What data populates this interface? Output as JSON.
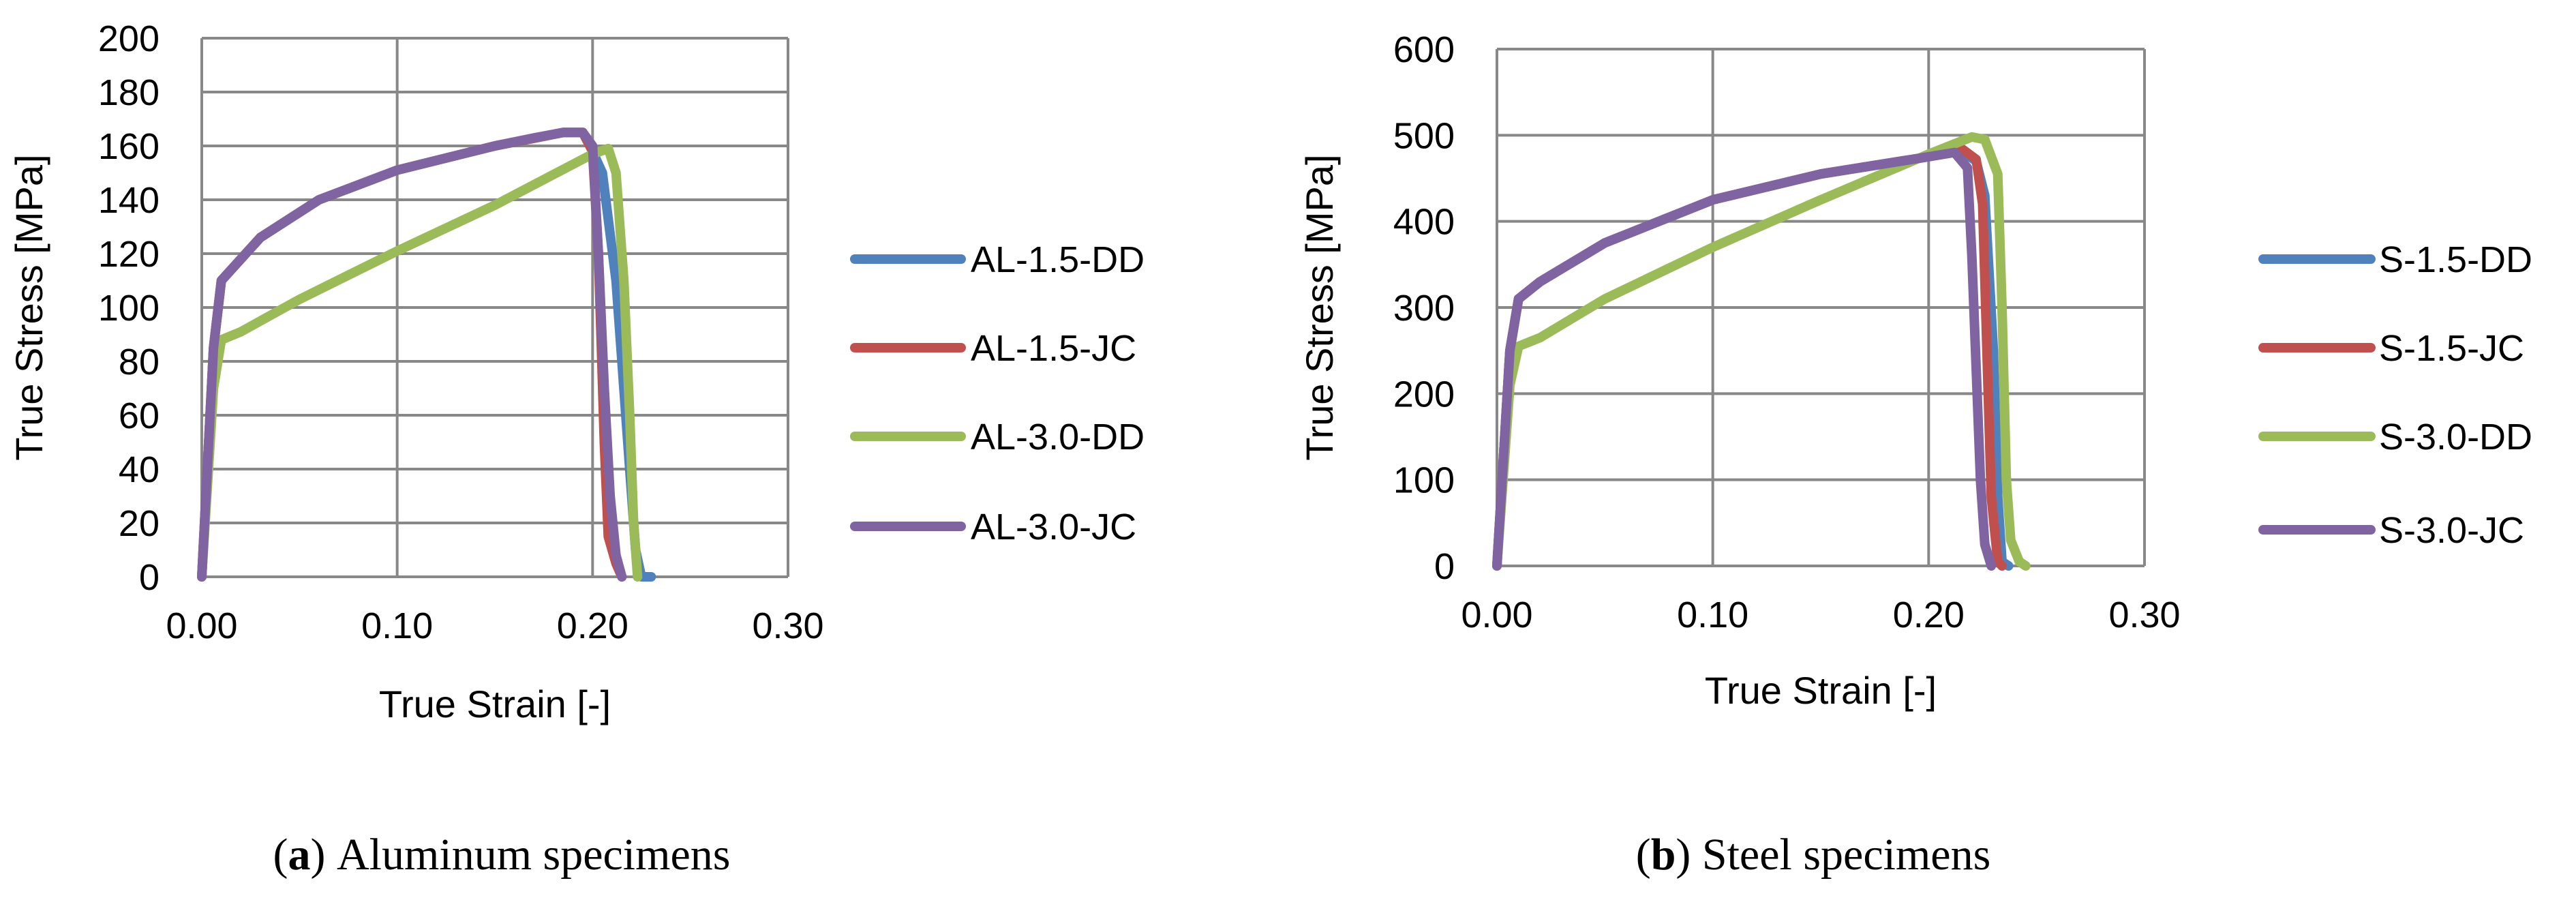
{
  "chart_data": [
    {
      "type": "line",
      "caption": {
        "open": "(",
        "letter": "a",
        "close": ") ",
        "text": "Aluminum specimens"
      },
      "xlabel": "True Strain [-]",
      "ylabel": "True Stress [MPa]",
      "xlim": [
        0,
        0.3
      ],
      "ylim": [
        0,
        200
      ],
      "x_ticks": [
        "0.00",
        "0.10",
        "0.20",
        "0.30"
      ],
      "y_ticks": [
        "0",
        "20",
        "40",
        "60",
        "80",
        "100",
        "120",
        "140",
        "160",
        "180",
        "200"
      ],
      "grid": true,
      "legend_position": "right",
      "series": [
        {
          "name": "AL-1.5-DD",
          "color": "#4F81BD",
          "points": [
            [
              0,
              0
            ],
            [
              0.006,
              85
            ],
            [
              0.01,
              110
            ],
            [
              0.03,
              126
            ],
            [
              0.06,
              140
            ],
            [
              0.1,
              151
            ],
            [
              0.15,
              160
            ],
            [
              0.185,
              165
            ],
            [
              0.195,
              165
            ],
            [
              0.2,
              158
            ],
            [
              0.205,
              150
            ],
            [
              0.212,
              110
            ],
            [
              0.218,
              50
            ],
            [
              0.222,
              10
            ],
            [
              0.225,
              0
            ],
            [
              0.23,
              0
            ]
          ]
        },
        {
          "name": "AL-1.5-JC",
          "color": "#C0504D",
          "points": [
            [
              0,
              0
            ],
            [
              0.006,
              85
            ],
            [
              0.01,
              110
            ],
            [
              0.03,
              126
            ],
            [
              0.06,
              140
            ],
            [
              0.1,
              151
            ],
            [
              0.15,
              160
            ],
            [
              0.185,
              165
            ],
            [
              0.195,
              165
            ],
            [
              0.2,
              158
            ],
            [
              0.203,
              120
            ],
            [
              0.206,
              50
            ],
            [
              0.208,
              15
            ],
            [
              0.212,
              5
            ],
            [
              0.215,
              0
            ]
          ]
        },
        {
          "name": "AL-3.0-DD",
          "color": "#9BBB59",
          "points": [
            [
              0,
              0
            ],
            [
              0.006,
              70
            ],
            [
              0.01,
              88
            ],
            [
              0.02,
              91
            ],
            [
              0.05,
              103
            ],
            [
              0.1,
              121
            ],
            [
              0.15,
              138
            ],
            [
              0.2,
              157
            ],
            [
              0.208,
              159
            ],
            [
              0.212,
              150
            ],
            [
              0.216,
              110
            ],
            [
              0.219,
              60
            ],
            [
              0.221,
              20
            ],
            [
              0.223,
              0
            ]
          ]
        },
        {
          "name": "AL-3.0-JC",
          "color": "#8064A2",
          "points": [
            [
              0,
              0
            ],
            [
              0.006,
              85
            ],
            [
              0.01,
              110
            ],
            [
              0.03,
              126
            ],
            [
              0.06,
              140
            ],
            [
              0.1,
              151
            ],
            [
              0.15,
              160
            ],
            [
              0.17,
              163
            ],
            [
              0.185,
              165
            ],
            [
              0.195,
              165
            ],
            [
              0.2,
              160
            ],
            [
              0.203,
              120
            ],
            [
              0.206,
              70
            ],
            [
              0.209,
              30
            ],
            [
              0.212,
              8
            ],
            [
              0.215,
              0
            ]
          ]
        }
      ]
    },
    {
      "type": "line",
      "caption": {
        "open": "(",
        "letter": "b",
        "close": ") ",
        "text": "Steel specimens"
      },
      "xlabel": "True Strain [-]",
      "ylabel": "True Stress [MPa]",
      "xlim": [
        0,
        0.3
      ],
      "ylim": [
        0,
        600
      ],
      "x_ticks": [
        "0.00",
        "0.10",
        "0.20",
        "0.30"
      ],
      "y_ticks": [
        "0",
        "100",
        "200",
        "300",
        "400",
        "500",
        "600"
      ],
      "grid": true,
      "legend_position": "right",
      "series": [
        {
          "name": "S-1.5-DD",
          "color": "#4F81BD",
          "points": [
            [
              0,
              0
            ],
            [
              0.006,
              250
            ],
            [
              0.01,
              310
            ],
            [
              0.02,
              330
            ],
            [
              0.05,
              375
            ],
            [
              0.1,
              425
            ],
            [
              0.15,
              455
            ],
            [
              0.2,
              475
            ],
            [
              0.215,
              482
            ],
            [
              0.222,
              470
            ],
            [
              0.226,
              430
            ],
            [
              0.23,
              250
            ],
            [
              0.232,
              80
            ],
            [
              0.234,
              5
            ],
            [
              0.237,
              0
            ]
          ]
        },
        {
          "name": "S-1.5-JC",
          "color": "#C0504D",
          "points": [
            [
              0,
              0
            ],
            [
              0.006,
              250
            ],
            [
              0.01,
              310
            ],
            [
              0.02,
              330
            ],
            [
              0.05,
              375
            ],
            [
              0.1,
              425
            ],
            [
              0.15,
              455
            ],
            [
              0.2,
              475
            ],
            [
              0.215,
              485
            ],
            [
              0.222,
              472
            ],
            [
              0.225,
              420
            ],
            [
              0.227,
              250
            ],
            [
              0.229,
              80
            ],
            [
              0.232,
              5
            ],
            [
              0.234,
              0
            ]
          ]
        },
        {
          "name": "S-3.0-DD",
          "color": "#9BBB59",
          "points": [
            [
              0,
              0
            ],
            [
              0.006,
              210
            ],
            [
              0.01,
              255
            ],
            [
              0.02,
              265
            ],
            [
              0.05,
              310
            ],
            [
              0.1,
              370
            ],
            [
              0.15,
              425
            ],
            [
              0.2,
              478
            ],
            [
              0.22,
              498
            ],
            [
              0.226,
              495
            ],
            [
              0.232,
              455
            ],
            [
              0.234,
              300
            ],
            [
              0.236,
              100
            ],
            [
              0.238,
              30
            ],
            [
              0.242,
              5
            ],
            [
              0.245,
              0
            ]
          ]
        },
        {
          "name": "S-3.0-JC",
          "color": "#8064A2",
          "points": [
            [
              0,
              0
            ],
            [
              0.006,
              250
            ],
            [
              0.01,
              310
            ],
            [
              0.02,
              330
            ],
            [
              0.05,
              375
            ],
            [
              0.1,
              425
            ],
            [
              0.15,
              455
            ],
            [
              0.2,
              475
            ],
            [
              0.212,
              480
            ],
            [
              0.218,
              462
            ],
            [
              0.22,
              360
            ],
            [
              0.222,
              230
            ],
            [
              0.224,
              100
            ],
            [
              0.226,
              25
            ],
            [
              0.229,
              0
            ]
          ]
        }
      ]
    }
  ]
}
